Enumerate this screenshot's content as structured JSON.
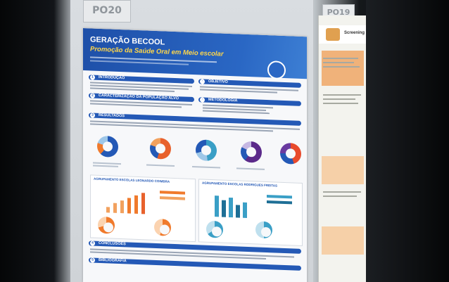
{
  "left_plate": "PO20",
  "right_plate": "PO19",
  "poster": {
    "title": "GERAÇÃO BECOOL",
    "subtitle": "Promoção da Saúde Oral em Meio escolar",
    "sections": [
      {
        "num": "1",
        "label": "INTRODUÇÃO"
      },
      {
        "num": "2",
        "label": "CARACTERIZAÇÃO DA POPULAÇÃO ALVO"
      },
      {
        "num": "3",
        "label": "RESULTADOS"
      },
      {
        "num": "4",
        "label": "CONCLUSÕES"
      },
      {
        "num": "5",
        "label": "BIBLIOGRAFIA"
      }
    ],
    "right_sections": [
      {
        "label": "OBJETIVO"
      },
      {
        "label": "METODOLOGIA"
      }
    ],
    "panel_left_title": "AGRUPAMENTO ESCOLAS LEONARDO COIMBRA",
    "panel_right_title": "AGRUPAMENTO ESCOLAS RODRIGUES FREITAS"
  },
  "poster2": {
    "heading": "Screening"
  },
  "colors": {
    "poster_blue": "#2459b6",
    "accent_orange": "#f07a2c",
    "accent_yellow": "#ffd64a",
    "chart_teal": "#3a9fc6"
  }
}
